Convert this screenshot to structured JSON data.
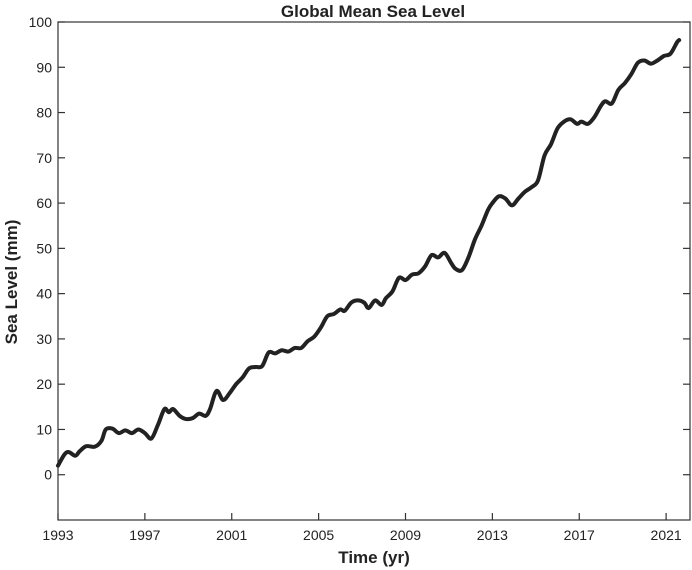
{
  "chart_data": {
    "type": "line",
    "title": "Global Mean Sea Level",
    "xlabel": "Time (yr)",
    "ylabel": "Sea Level (mm)",
    "xlim": [
      1993,
      2022.1
    ],
    "ylim": [
      -10,
      100
    ],
    "xticks": [
      1993,
      1997,
      2001,
      2005,
      2009,
      2013,
      2017,
      2021
    ],
    "yticks": [
      0,
      10,
      20,
      30,
      40,
      50,
      60,
      70,
      80,
      90,
      100
    ],
    "grid": false,
    "series": [
      {
        "color": "#222222",
        "x": [
          1993.0,
          1993.3,
          1993.5,
          1993.8,
          1994.0,
          1994.3,
          1994.7,
          1995.0,
          1995.2,
          1995.5,
          1995.8,
          1996.1,
          1996.4,
          1996.7,
          1997.0,
          1997.3,
          1997.6,
          1997.9,
          1998.1,
          1998.3,
          1998.6,
          1998.9,
          1999.2,
          1999.5,
          1999.8,
          2000.0,
          2000.3,
          2000.6,
          2000.9,
          2001.2,
          2001.5,
          2001.8,
          2002.1,
          2002.4,
          2002.7,
          2003.0,
          2003.3,
          2003.6,
          2003.9,
          2004.2,
          2004.5,
          2004.8,
          2005.1,
          2005.4,
          2005.7,
          2006.0,
          2006.2,
          2006.5,
          2006.8,
          2007.1,
          2007.3,
          2007.6,
          2007.9,
          2008.1,
          2008.4,
          2008.7,
          2009.0,
          2009.3,
          2009.6,
          2009.9,
          2010.2,
          2010.5,
          2010.8,
          2011.1,
          2011.3,
          2011.6,
          2011.9,
          2012.2,
          2012.5,
          2012.8,
          2013.0,
          2013.3,
          2013.6,
          2013.9,
          2014.2,
          2014.5,
          2014.8,
          2015.1,
          2015.4,
          2015.7,
          2016.0,
          2016.3,
          2016.6,
          2016.9,
          2017.1,
          2017.4,
          2017.7,
          2018.0,
          2018.2,
          2018.5,
          2018.8,
          2019.1,
          2019.4,
          2019.7,
          2020.0,
          2020.3,
          2020.6,
          2020.9,
          2021.2,
          2021.5,
          2021.6
        ],
        "y": [
          2.0,
          4.5,
          5.0,
          4.2,
          5.2,
          6.3,
          6.2,
          7.5,
          10.0,
          10.2,
          9.2,
          9.8,
          9.2,
          10.0,
          9.2,
          8.0,
          11.0,
          14.5,
          13.8,
          14.5,
          13.0,
          12.3,
          12.5,
          13.5,
          13.0,
          14.5,
          18.5,
          16.5,
          18.0,
          20.0,
          21.5,
          23.5,
          23.8,
          24.0,
          27.0,
          26.8,
          27.5,
          27.2,
          28.0,
          28.0,
          29.5,
          30.5,
          32.5,
          35.0,
          35.5,
          36.5,
          36.2,
          38.0,
          38.5,
          38.0,
          36.8,
          38.5,
          37.5,
          39.0,
          40.5,
          43.5,
          43.0,
          44.2,
          44.5,
          46.0,
          48.5,
          48.0,
          49.0,
          46.8,
          45.5,
          45.2,
          48.0,
          52.0,
          55.0,
          58.5,
          60.0,
          61.5,
          61.0,
          59.5,
          61.0,
          62.5,
          63.5,
          65.0,
          70.5,
          73.0,
          76.5,
          78.0,
          78.5,
          77.5,
          78.0,
          77.5,
          79.0,
          81.5,
          82.5,
          82.0,
          85.0,
          86.5,
          88.5,
          91.0,
          91.5,
          90.8,
          91.5,
          92.5,
          93.0,
          95.5,
          96.0
        ]
      }
    ]
  }
}
